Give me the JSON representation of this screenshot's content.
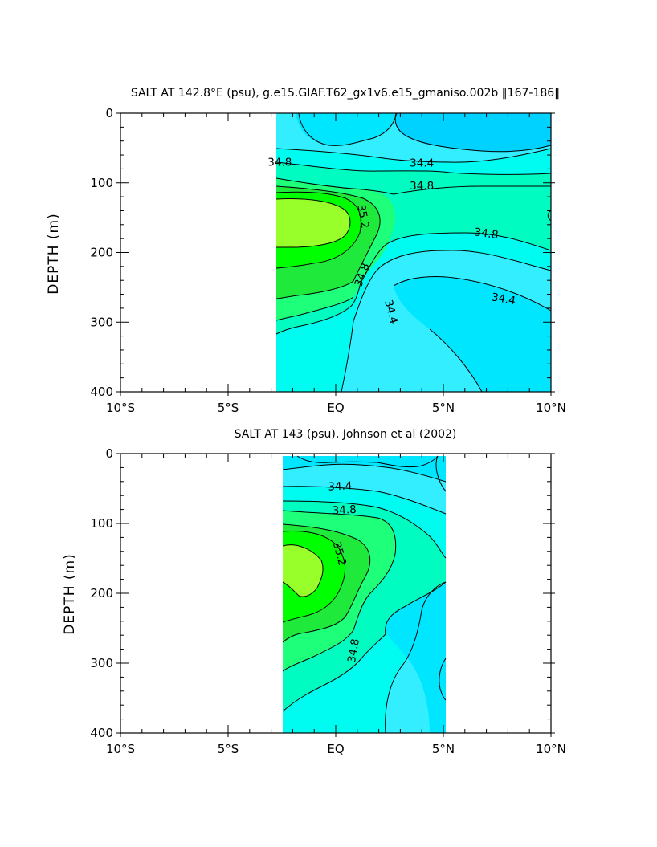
{
  "colors": {
    "s34_0": "#00d2ff",
    "s34_2": "#00e6ff",
    "s34_4": "#33eeff",
    "s34_6": "#00fcf0",
    "s34_8": "#00fcc0",
    "s35_0": "#1eff7a",
    "s35_2": "#1fea3c",
    "s35_4": "#00ff00",
    "s35_6": "#99ff2a"
  },
  "chart_data": [
    {
      "type": "contour",
      "title": "SALT AT 142.8°E (psu), g.e15.GIAF.T62_gx1v6.e15_gmaniso.002b ‖167-186‖",
      "xlabel": "",
      "ylabel": "DEPTH (m)",
      "x_ticks": [
        "10°S",
        "5°S",
        "EQ",
        "5°N",
        "10°N"
      ],
      "y_ticks": [
        "0",
        "100",
        "200",
        "300",
        "400"
      ],
      "xlim_deg_lat": [
        -10,
        10
      ],
      "ylim_m": [
        400,
        0
      ],
      "data_extent_lat": [
        -3,
        10
      ],
      "contour_interval_psu": 0.2,
      "contour_labels": [
        {
          "text": "34.8",
          "lat": -2.6,
          "depth": 70
        },
        {
          "text": "34.4",
          "lat": 4.0,
          "depth": 71
        },
        {
          "text": "34.8",
          "lat": 4.0,
          "depth": 104
        },
        {
          "text": "35.2",
          "lat": 1.3,
          "depth": 148
        },
        {
          "text": "34.8",
          "lat": 7.0,
          "depth": 172
        },
        {
          "text": "34.8",
          "lat": 1.2,
          "depth": 232
        },
        {
          "text": "34.4",
          "lat": 7.8,
          "depth": 266
        },
        {
          "text": "34.4",
          "lat": 2.6,
          "depth": 285
        }
      ]
    },
    {
      "type": "contour",
      "title": "SALT AT 143 (psu), Johnson et al (2002)",
      "xlabel": "",
      "ylabel": "DEPTH (m)",
      "x_ticks": [
        "10°S",
        "5°S",
        "EQ",
        "5°N",
        "10°N"
      ],
      "y_ticks": [
        "0",
        "100",
        "200",
        "300",
        "400"
      ],
      "xlim_deg_lat": [
        -10,
        10
      ],
      "ylim_m": [
        400,
        0
      ],
      "data_extent_lat": [
        -2.8,
        5
      ],
      "contour_interval_psu": 0.2,
      "contour_labels": [
        {
          "text": "34.4",
          "lat": 0.2,
          "depth": 46
        },
        {
          "text": "34.8",
          "lat": 0.4,
          "depth": 80
        },
        {
          "text": "35.2",
          "lat": 0.2,
          "depth": 143
        },
        {
          "text": "34.8",
          "lat": 0.8,
          "depth": 282
        }
      ]
    }
  ]
}
